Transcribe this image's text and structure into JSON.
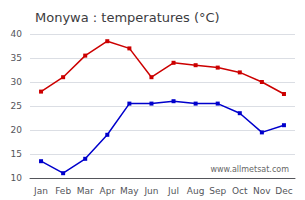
{
  "chart_data": {
    "type": "line",
    "title": "Monywa : temperatures (°C)",
    "categories": [
      "Jan",
      "Feb",
      "Mar",
      "Apr",
      "May",
      "Jun",
      "Jul",
      "Aug",
      "Sep",
      "Oct",
      "Nov",
      "Dec"
    ],
    "series": [
      {
        "color": "#cc0000",
        "values": [
          28,
          31,
          35.5,
          38.5,
          37,
          31,
          34,
          33.5,
          33,
          32,
          30,
          27.5
        ]
      },
      {
        "color": "#0000cc",
        "values": [
          13.5,
          11,
          14,
          19,
          25.5,
          25.5,
          26,
          25.5,
          25.5,
          23.5,
          19.5,
          21
        ]
      }
    ],
    "ylim": [
      10,
      40
    ],
    "yticks": [
      10,
      15,
      20,
      25,
      30,
      35,
      40
    ],
    "grid": true,
    "marker": "square",
    "annotation": "www.allmetsat.com"
  }
}
